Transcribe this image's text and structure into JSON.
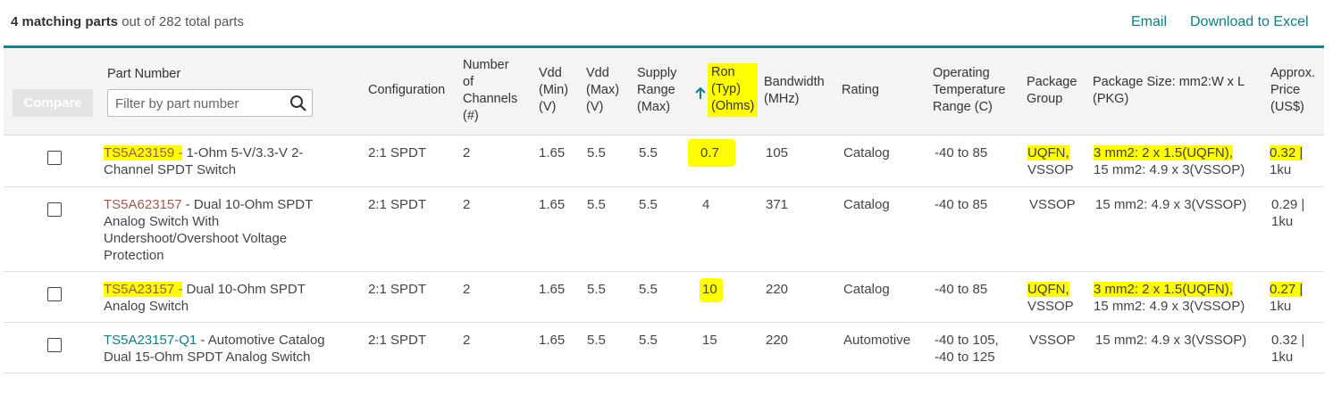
{
  "summary": {
    "count_text": "4 matching parts",
    "rest_text": " out of 282 total parts"
  },
  "actions": {
    "email": "Email",
    "download": "Download to Excel"
  },
  "table": {
    "compare_label": "Compare",
    "filter_placeholder": "Filter by part number",
    "headers": {
      "part_number": "Part Number",
      "configuration": "Configuration",
      "channels": [
        "Number",
        "of",
        "Channels",
        "(#)"
      ],
      "vdd_min": [
        "Vdd",
        "(Min)",
        "(V)"
      ],
      "vdd_max": [
        "Vdd",
        "(Max)",
        "(V)"
      ],
      "supply_range": [
        "Supply",
        "Range",
        "(Max)"
      ],
      "ron": [
        "Ron",
        "(Typ)",
        "(Ohms)"
      ],
      "bandwidth": [
        "Bandwidth",
        "(MHz)"
      ],
      "rating": "Rating",
      "op_temp": [
        "Operating",
        "Temperature",
        "Range (C)"
      ],
      "package_group": [
        "Package",
        "Group"
      ],
      "package_size": [
        "Package Size: mm2:W x L",
        "(PKG)"
      ],
      "price": [
        "Approx.",
        "Price",
        "(US$)"
      ]
    },
    "rows": [
      {
        "part": "TS5A23159 -",
        "desc_lines": [
          " 1-Ohm 5-V/3.3-V 2-",
          "Channel SPDT Switch"
        ],
        "config": "2:1 SPDT",
        "channels": "2",
        "vdd_min": "1.65",
        "vdd_max": "5.5",
        "supply": "5.5",
        "ron": "0.7",
        "bandwidth": "105",
        "rating": "Catalog",
        "temp": [
          "-40 to 85"
        ],
        "pkg_group": [
          "UQFN,",
          "VSSOP"
        ],
        "pkg_size": [
          "3 mm2: 2 x 1.5(UQFN),",
          "15 mm2: 4.9 x 3(VSSOP)"
        ],
        "price": [
          "0.32 |",
          "1ku"
        ]
      },
      {
        "part": "TS5A623157",
        "desc_lines": [
          " - Dual 10-Ohm SPDT",
          "Analog Switch With",
          "Undershoot/Overshoot Voltage",
          "Protection"
        ],
        "config": "2:1 SPDT",
        "channels": "2",
        "vdd_min": "1.65",
        "vdd_max": "5.5",
        "supply": "5.5",
        "ron": "4",
        "bandwidth": "371",
        "rating": "Catalog",
        "temp": [
          "-40 to 85"
        ],
        "pkg_group": [
          "VSSOP"
        ],
        "pkg_size": [
          "15 mm2: 4.9 x 3(VSSOP)"
        ],
        "price": [
          "0.29 |",
          "1ku"
        ]
      },
      {
        "part": "TS5A23157 -",
        "desc_lines": [
          " Dual 10-Ohm SPDT",
          "Analog Switch"
        ],
        "config": "2:1 SPDT",
        "channels": "2",
        "vdd_min": "1.65",
        "vdd_max": "5.5",
        "supply": "5.5",
        "ron": "10",
        "bandwidth": "220",
        "rating": "Catalog",
        "temp": [
          "-40 to 85"
        ],
        "pkg_group": [
          "UQFN,",
          "VSSOP"
        ],
        "pkg_size": [
          "3 mm2: 2 x 1.5(UQFN),",
          "15 mm2: 4.9 x 3(VSSOP)"
        ],
        "price": [
          "0.27 |",
          "1ku"
        ]
      },
      {
        "part": "TS5A23157-Q1",
        "desc_lines": [
          " - Automotive Catalog",
          "Dual 15-Ohm SPDT Analog Switch"
        ],
        "config": "2:1 SPDT",
        "channels": "2",
        "vdd_min": "1.65",
        "vdd_max": "5.5",
        "supply": "5.5",
        "ron": "15",
        "bandwidth": "220",
        "rating": "Automotive",
        "temp": [
          "-40 to 105,",
          "-40 to 125"
        ],
        "pkg_group": [
          "VSSOP"
        ],
        "pkg_size": [
          "15 mm2: 4.9 x 3(VSSOP)"
        ],
        "price": [
          "0.32 |",
          "1ku"
        ]
      }
    ]
  },
  "colors": {
    "accent": "#117c85",
    "highlight": "#ffff00",
    "visited_link": "#9b5c4e"
  }
}
